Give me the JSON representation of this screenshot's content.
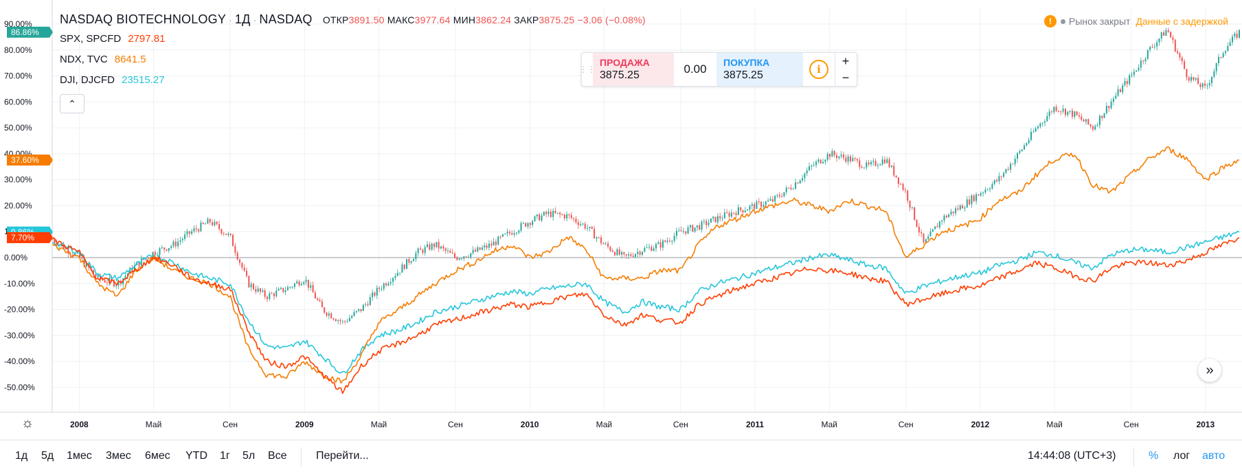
{
  "header": {
    "symbol": "NASDAQ BIOTECHNOLOGY",
    "interval": "1Д",
    "exchange": "NASDAQ",
    "open_label": "ОТКР",
    "open": "3891.50",
    "high_label": "МАКС",
    "high": "3977.64",
    "low_label": "МИН",
    "low": "3862.24",
    "close_label": "ЗАКР",
    "close": "3875.25",
    "change": "−3.06 (−0.08%)"
  },
  "legend": [
    {
      "name": "SPX, SPCFD",
      "value": "2797.81",
      "color": "#ff3d00"
    },
    {
      "name": "NDX, TVC",
      "value": "8641.5",
      "color": "#f57c00"
    },
    {
      "name": "DJI, DJCFD",
      "value": "23515.27",
      "color": "#26c6da"
    }
  ],
  "collapse_icon": "chevron-up-icon",
  "trade_panel": {
    "sell_label": "ПРОДАЖА",
    "sell_price": "3875.25",
    "spread": "0.00",
    "buy_label": "ПОКУПКА",
    "buy_price": "3875.25",
    "plus": "+",
    "minus": "−"
  },
  "status": {
    "warning_icon": "!",
    "market_closed": "Рынок закрыт",
    "delayed": "Данные с задержкой"
  },
  "toolbar": {
    "ranges": [
      "1д",
      "5д",
      "1мес",
      "3мес",
      "6мес",
      "YTD",
      "1г",
      "5л",
      "Все"
    ],
    "goto": "Перейти...",
    "time": "14:44:08 (UTC+3)",
    "percent": "%",
    "log": "лог",
    "auto": "авто"
  },
  "chart_data": {
    "type": "line",
    "y_unit": "%",
    "ylim": [
      -58,
      93
    ],
    "y_ticks": [
      "90.00%",
      "80.00%",
      "70.00%",
      "60.00%",
      "50.00%",
      "40.00%",
      "30.00%",
      "20.00%",
      "10.00%",
      "0.00%",
      "-10.00%",
      "-20.00%",
      "-30.00%",
      "-40.00%",
      "-50.00%"
    ],
    "x_ticks": [
      {
        "label": "2008",
        "t": 2008.0,
        "year": true
      },
      {
        "label": "Май",
        "t": 2008.33
      },
      {
        "label": "Сен",
        "t": 2008.67
      },
      {
        "label": "2009",
        "t": 2009.0,
        "year": true
      },
      {
        "label": "Май",
        "t": 2009.33
      },
      {
        "label": "Сен",
        "t": 2009.67
      },
      {
        "label": "2010",
        "t": 2010.0,
        "year": true
      },
      {
        "label": "Май",
        "t": 2010.33
      },
      {
        "label": "Сен",
        "t": 2010.67
      },
      {
        "label": "2011",
        "t": 2011.0,
        "year": true
      },
      {
        "label": "Май",
        "t": 2011.33
      },
      {
        "label": "Сен",
        "t": 2011.67
      },
      {
        "label": "2012",
        "t": 2012.0,
        "year": true
      },
      {
        "label": "Май",
        "t": 2012.33
      },
      {
        "label": "Сен",
        "t": 2012.67
      },
      {
        "label": "2013",
        "t": 2013.0,
        "year": true
      }
    ],
    "last_value_tags": [
      {
        "label": "86.86%",
        "value": 86.86,
        "color": "#26a69a"
      },
      {
        "label": "37.60%",
        "value": 37.6,
        "color": "#f57c00"
      },
      {
        "label": "9.86%",
        "value": 9.86,
        "color": "#26c6da"
      },
      {
        "label": "7.70%",
        "value": 7.7,
        "color": "#ff3d00"
      }
    ],
    "main_series": {
      "name": "NASDAQ BIOTECHNOLOGY",
      "style": "candles",
      "up_color": "#26a69a",
      "down_color": "#ef5350",
      "x": [
        2007.88,
        2008.0,
        2008.08,
        2008.17,
        2008.25,
        2008.33,
        2008.42,
        2008.5,
        2008.58,
        2008.67,
        2008.75,
        2008.83,
        2008.92,
        2009.0,
        2009.08,
        2009.17,
        2009.25,
        2009.33,
        2009.42,
        2009.5,
        2009.58,
        2009.67,
        2009.75,
        2009.83,
        2009.92,
        2010.0,
        2010.08,
        2010.17,
        2010.25,
        2010.33,
        2010.42,
        2010.5,
        2010.58,
        2010.67,
        2010.75,
        2010.83,
        2010.92,
        2011.0,
        2011.08,
        2011.17,
        2011.25,
        2011.33,
        2011.42,
        2011.5,
        2011.58,
        2011.67,
        2011.75,
        2011.83,
        2011.92,
        2012.0,
        2012.08,
        2012.17,
        2012.25,
        2012.33,
        2012.42,
        2012.5,
        2012.58,
        2012.67,
        2012.75,
        2012.83,
        2012.92,
        2013.0,
        2013.08,
        2013.15
      ],
      "values": [
        7,
        0,
        -8,
        -10,
        -3,
        2,
        5,
        10,
        14,
        8,
        -10,
        -15,
        -12,
        -8,
        -20,
        -25,
        -20,
        -12,
        -5,
        2,
        5,
        0,
        2,
        5,
        10,
        14,
        17,
        16,
        12,
        5,
        0,
        3,
        5,
        10,
        12,
        15,
        18,
        20,
        22,
        28,
        35,
        40,
        38,
        35,
        38,
        25,
        5,
        15,
        20,
        25,
        30,
        40,
        50,
        58,
        55,
        50,
        60,
        70,
        80,
        88,
        70,
        65,
        80,
        86.86
      ]
    },
    "series": [
      {
        "name": "SPX, SPCFD",
        "color": "#ff3d00",
        "x": [
          2007.88,
          2008.0,
          2008.08,
          2008.17,
          2008.25,
          2008.33,
          2008.42,
          2008.5,
          2008.58,
          2008.67,
          2008.75,
          2008.83,
          2008.92,
          2009.0,
          2009.08,
          2009.17,
          2009.25,
          2009.33,
          2009.42,
          2009.5,
          2009.58,
          2009.67,
          2009.75,
          2009.83,
          2009.92,
          2010.0,
          2010.08,
          2010.17,
          2010.25,
          2010.33,
          2010.42,
          2010.5,
          2010.58,
          2010.67,
          2010.75,
          2010.83,
          2010.92,
          2011.0,
          2011.08,
          2011.17,
          2011.25,
          2011.33,
          2011.42,
          2011.5,
          2011.58,
          2011.67,
          2011.75,
          2011.83,
          2011.92,
          2012.0,
          2012.08,
          2012.17,
          2012.25,
          2012.33,
          2012.42,
          2012.5,
          2012.58,
          2012.67,
          2012.75,
          2012.83,
          2012.92,
          2013.0,
          2013.08,
          2013.15
        ],
        "values": [
          7,
          2,
          -8,
          -10,
          -5,
          0,
          -3,
          -8,
          -10,
          -12,
          -28,
          -40,
          -42,
          -38,
          -45,
          -52,
          -42,
          -36,
          -33,
          -30,
          -26,
          -24,
          -22,
          -20,
          -18,
          -19,
          -17,
          -15,
          -14,
          -22,
          -26,
          -22,
          -24,
          -25,
          -18,
          -15,
          -12,
          -10,
          -8,
          -6,
          -4,
          -5,
          -6,
          -8,
          -9,
          -18,
          -16,
          -14,
          -12,
          -11,
          -8,
          -5,
          -2,
          -4,
          -7,
          -9,
          -4,
          -2,
          -2,
          -3,
          -1,
          2,
          5,
          7.7
        ]
      },
      {
        "name": "NDX, TVC",
        "color": "#f57c00",
        "x": [
          2007.88,
          2008.0,
          2008.08,
          2008.17,
          2008.25,
          2008.33,
          2008.42,
          2008.5,
          2008.58,
          2008.67,
          2008.75,
          2008.83,
          2008.92,
          2009.0,
          2009.08,
          2009.17,
          2009.25,
          2009.33,
          2009.42,
          2009.5,
          2009.58,
          2009.67,
          2009.75,
          2009.83,
          2009.92,
          2010.0,
          2010.08,
          2010.17,
          2010.25,
          2010.33,
          2010.42,
          2010.5,
          2010.58,
          2010.67,
          2010.75,
          2010.83,
          2010.92,
          2011.0,
          2011.08,
          2011.17,
          2011.25,
          2011.33,
          2011.42,
          2011.5,
          2011.58,
          2011.67,
          2011.75,
          2011.83,
          2011.92,
          2012.0,
          2012.08,
          2012.17,
          2012.25,
          2012.33,
          2012.42,
          2012.5,
          2012.58,
          2012.67,
          2012.75,
          2012.83,
          2012.92,
          2013.0,
          2013.08,
          2013.15
        ],
        "values": [
          5,
          0,
          -10,
          -15,
          -5,
          0,
          -5,
          -8,
          -10,
          -15,
          -35,
          -45,
          -46,
          -40,
          -45,
          -48,
          -38,
          -25,
          -20,
          -15,
          -10,
          -5,
          -2,
          2,
          5,
          0,
          2,
          8,
          3,
          -8,
          -8,
          -8,
          -5,
          -5,
          5,
          12,
          15,
          18,
          20,
          22,
          20,
          18,
          22,
          20,
          18,
          0,
          5,
          10,
          12,
          15,
          22,
          25,
          32,
          38,
          40,
          28,
          25,
          32,
          38,
          42,
          38,
          30,
          35,
          37.6
        ]
      },
      {
        "name": "DJI, DJCFD",
        "color": "#26c6da",
        "x": [
          2007.88,
          2008.0,
          2008.08,
          2008.17,
          2008.25,
          2008.33,
          2008.42,
          2008.5,
          2008.58,
          2008.67,
          2008.75,
          2008.83,
          2008.92,
          2009.0,
          2009.08,
          2009.17,
          2009.25,
          2009.33,
          2009.42,
          2009.5,
          2009.58,
          2009.67,
          2009.75,
          2009.83,
          2009.92,
          2010.0,
          2010.08,
          2010.17,
          2010.25,
          2010.33,
          2010.42,
          2010.5,
          2010.58,
          2010.67,
          2010.75,
          2010.83,
          2010.92,
          2011.0,
          2011.08,
          2011.17,
          2011.25,
          2011.33,
          2011.42,
          2011.5,
          2011.58,
          2011.67,
          2011.75,
          2011.83,
          2011.92,
          2012.0,
          2012.08,
          2012.17,
          2012.25,
          2012.33,
          2012.42,
          2012.5,
          2012.58,
          2012.67,
          2012.75,
          2012.83,
          2012.92,
          2013.0,
          2013.08,
          2013.15
        ],
        "values": [
          6,
          2,
          -6,
          -8,
          -3,
          1,
          -2,
          -6,
          -8,
          -10,
          -24,
          -34,
          -35,
          -32,
          -38,
          -45,
          -36,
          -30,
          -28,
          -25,
          -21,
          -19,
          -17,
          -15,
          -13,
          -14,
          -12,
          -11,
          -10,
          -17,
          -21,
          -17,
          -19,
          -20,
          -13,
          -10,
          -8,
          -6,
          -4,
          -2,
          0,
          1,
          -1,
          -3,
          -4,
          -14,
          -11,
          -9,
          -7,
          -6,
          -3,
          -1,
          2,
          1,
          -2,
          -4,
          1,
          3,
          3,
          2,
          4,
          6,
          8,
          9.86
        ]
      }
    ]
  }
}
